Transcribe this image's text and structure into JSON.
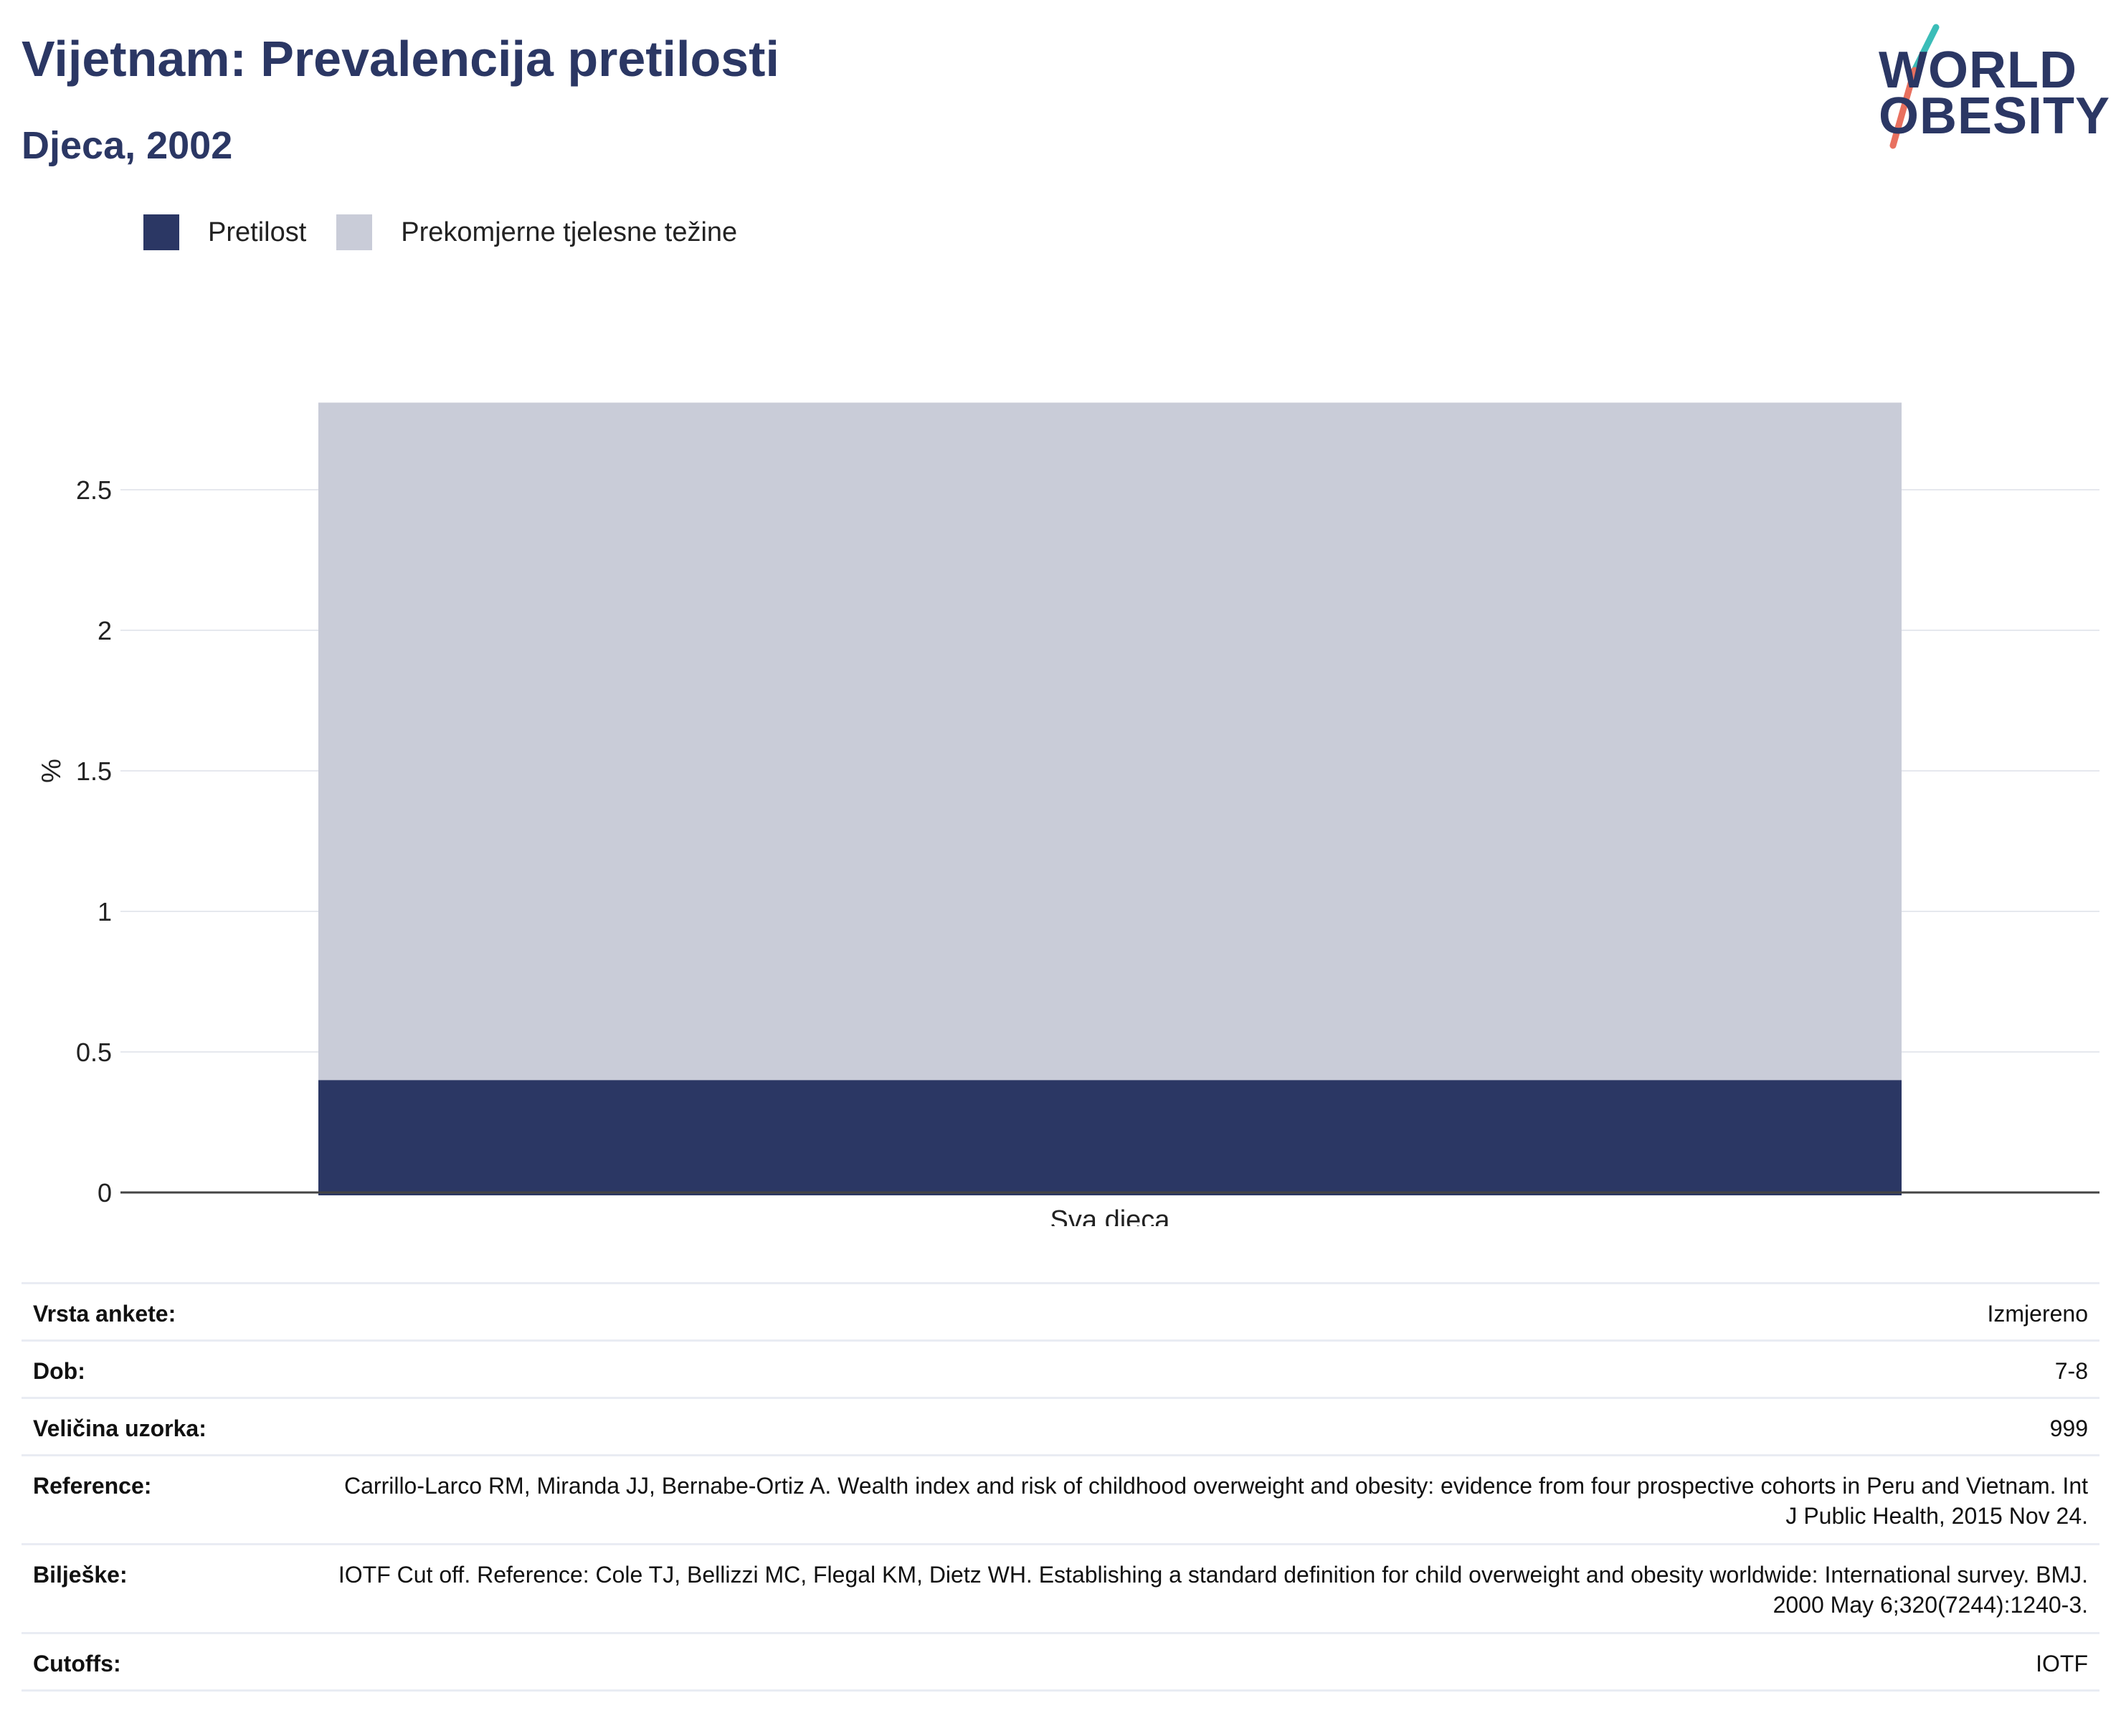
{
  "header": {
    "title": "Vijetnam: Prevalencija pretilosti",
    "subtitle": "Djeca, 2002"
  },
  "logo": {
    "line1": "WORLD",
    "line2": "OBESITY",
    "colors": {
      "text": "#2b3764",
      "slash_top": "#3bbdb8",
      "slash_bottom": "#e8705f"
    }
  },
  "legend": [
    {
      "label": "Pretilost",
      "color": "#2b3764"
    },
    {
      "label": "Prekomjerne tjelesne težine",
      "color": "#c9ccd8"
    }
  ],
  "chart_data": {
    "type": "bar",
    "stacked": true,
    "categories": [
      "Sva djeca"
    ],
    "series": [
      {
        "name": "Pretilost",
        "values": [
          0.4
        ],
        "color": "#2b3764"
      },
      {
        "name": "Prekomjerne tjelesne težine",
        "values": [
          2.41
        ],
        "color": "#c9ccd8"
      }
    ],
    "title": "Vijetnam: Prevalencija pretilosti",
    "subtitle": "Djeca, 2002",
    "xlabel": "",
    "ylabel": "%",
    "ylim": [
      0,
      2.81
    ],
    "yticks": [
      0,
      0.5,
      1,
      1.5,
      2,
      2.5
    ],
    "ytick_labels": [
      "0",
      "0.5",
      "1",
      "1.5",
      "2",
      "2.5"
    ],
    "grid": true,
    "legend_position": "top-left"
  },
  "table": {
    "rows": [
      {
        "label": "Vrsta ankete:",
        "value": "Izmjereno"
      },
      {
        "label": "Dob:",
        "value": "7-8"
      },
      {
        "label": "Veličina uzorka:",
        "value": "999"
      },
      {
        "label": "Reference:",
        "value": "Carrillo-Larco RM, Miranda JJ, Bernabe-Ortiz A. Wealth index and risk of childhood overweight and obesity: evidence from four prospective cohorts in Peru and Vietnam. Int J Public Health, 2015 Nov 24."
      },
      {
        "label": "Bilješke:",
        "value": "IOTF Cut off. Reference: Cole TJ, Bellizzi MC, Flegal KM, Dietz WH. Establishing a standard definition for child overweight and obesity worldwide: International survey. BMJ. 2000 May 6;320(7244):1240-3."
      },
      {
        "label": "Cutoffs:",
        "value": "IOTF"
      }
    ]
  }
}
